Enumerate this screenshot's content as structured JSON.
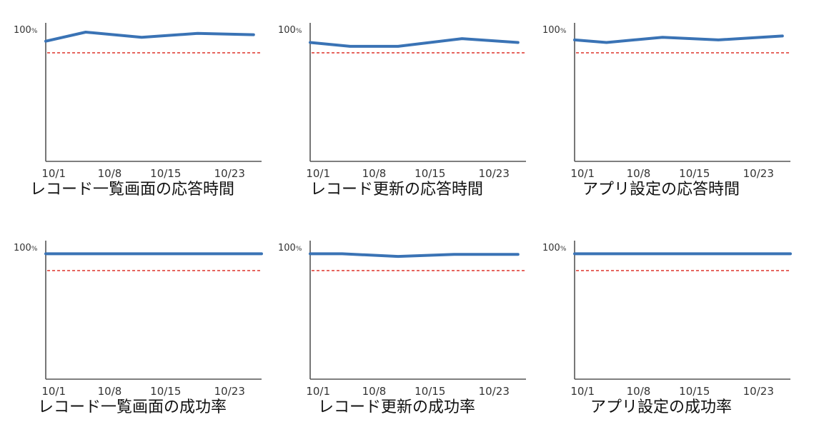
{
  "style": {
    "series_color": "#3a73b5",
    "threshold_color": "#e0443c",
    "axis_color": "#555555"
  },
  "chart_data": [
    {
      "type": "line",
      "title": "レコード一覧画面の応答時間",
      "ytick_label": "100",
      "ytick_unit": "%",
      "ylim": [
        0,
        100
      ],
      "x_tick_labels": [
        "10/1",
        "10/8",
        "10/15",
        "10/23"
      ],
      "x_tick_days": [
        1,
        8,
        15,
        23
      ],
      "xlim": [
        0,
        27
      ],
      "threshold": 84,
      "series": [
        {
          "x": [
            0,
            5,
            12,
            19,
            26
          ],
          "y": [
            93,
            100,
            96,
            99,
            98
          ]
        }
      ]
    },
    {
      "type": "line",
      "title": "レコード更新の応答時間",
      "ytick_label": "100",
      "ytick_unit": "%",
      "ylim": [
        0,
        100
      ],
      "x_tick_labels": [
        "10/1",
        "10/8",
        "10/15",
        "10/23"
      ],
      "x_tick_days": [
        1,
        8,
        15,
        23
      ],
      "xlim": [
        0,
        27
      ],
      "threshold": 84,
      "series": [
        {
          "x": [
            0,
            5,
            11,
            19,
            26
          ],
          "y": [
            92,
            89,
            89,
            95,
            92
          ]
        }
      ]
    },
    {
      "type": "line",
      "title": "アプリ設定の応答時間",
      "ytick_label": "100",
      "ytick_unit": "%",
      "ylim": [
        0,
        100
      ],
      "x_tick_labels": [
        "10/1",
        "10/8",
        "10/15",
        "10/23"
      ],
      "x_tick_days": [
        1,
        8,
        15,
        23
      ],
      "xlim": [
        0,
        27
      ],
      "threshold": 84,
      "series": [
        {
          "x": [
            0,
            4,
            11,
            18,
            26
          ],
          "y": [
            94,
            92,
            96,
            94,
            97
          ]
        }
      ]
    },
    {
      "type": "line",
      "title": "レコード一覧画面の成功率",
      "ytick_label": "100",
      "ytick_unit": "%",
      "ylim": [
        0,
        100
      ],
      "x_tick_labels": [
        "10/1",
        "10/8",
        "10/15",
        "10/23"
      ],
      "x_tick_days": [
        1,
        8,
        15,
        23
      ],
      "xlim": [
        0,
        27
      ],
      "threshold": 84,
      "series": [
        {
          "x": [
            0,
            9,
            18,
            27
          ],
          "y": [
            97,
            97,
            97,
            97
          ]
        }
      ]
    },
    {
      "type": "line",
      "title": "レコード更新の成功率",
      "ytick_label": "100",
      "ytick_unit": "%",
      "ylim": [
        0,
        100
      ],
      "x_tick_labels": [
        "10/1",
        "10/8",
        "10/15",
        "10/23"
      ],
      "x_tick_days": [
        1,
        8,
        15,
        23
      ],
      "xlim": [
        0,
        27
      ],
      "threshold": 84,
      "series": [
        {
          "x": [
            0,
            4,
            11,
            18,
            26
          ],
          "y": [
            97,
            97,
            95,
            96.5,
            96.5
          ]
        }
      ]
    },
    {
      "type": "line",
      "title": "アプリ設定の成功率",
      "ytick_label": "100",
      "ytick_unit": "%",
      "ylim": [
        0,
        100
      ],
      "x_tick_labels": [
        "10/1",
        "10/8",
        "10/15",
        "10/23"
      ],
      "x_tick_days": [
        1,
        8,
        15,
        23
      ],
      "xlim": [
        0,
        27
      ],
      "threshold": 84,
      "series": [
        {
          "x": [
            0,
            9,
            18,
            27
          ],
          "y": [
            97,
            97,
            97,
            97
          ]
        }
      ]
    }
  ]
}
